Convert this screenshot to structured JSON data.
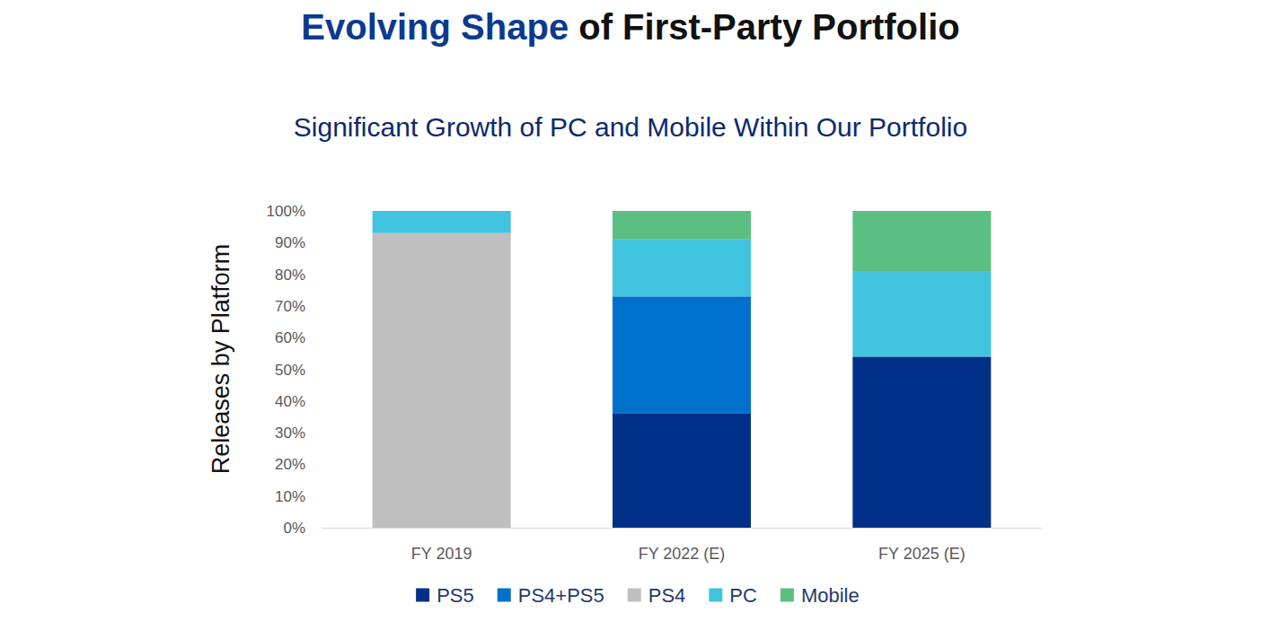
{
  "chart_data": {
    "type": "bar",
    "stacked": true,
    "title": "Evolving Shape of First-Party Portfolio",
    "subtitle": "Significant Growth of PC and Mobile Within Our Portfolio",
    "y_label": "Releases by Platform",
    "categories": [
      "FY 2019",
      "FY 2022 (E)",
      "FY 2025 (E)"
    ],
    "series": [
      {
        "name": "PS5",
        "color": "#003087",
        "values": [
          0,
          36,
          54
        ]
      },
      {
        "name": "PS4+PS5",
        "color": "#0070cc",
        "values": [
          0,
          37,
          0
        ]
      },
      {
        "name": "PS4",
        "color": "#bfbfbf",
        "values": [
          93,
          0,
          0
        ]
      },
      {
        "name": "PC",
        "color": "#40c4df",
        "values": [
          7,
          18,
          27
        ]
      },
      {
        "name": "Mobile",
        "color": "#5bbf82",
        "values": [
          0,
          9,
          19
        ]
      }
    ],
    "ylim": [
      0,
      100
    ],
    "yticks": [
      {
        "value": 0,
        "label": "0%"
      },
      {
        "value": 10,
        "label": "10%"
      },
      {
        "value": 20,
        "label": "20%"
      },
      {
        "value": 30,
        "label": "30%"
      },
      {
        "value": 40,
        "label": "40%"
      },
      {
        "value": 50,
        "label": "50%"
      },
      {
        "value": 60,
        "label": "60%"
      },
      {
        "value": 70,
        "label": "70%"
      },
      {
        "value": 80,
        "label": "80%"
      },
      {
        "value": 90,
        "label": "90%"
      },
      {
        "value": 100,
        "label": "100%"
      }
    ],
    "grid": false,
    "legend": "bottom"
  }
}
